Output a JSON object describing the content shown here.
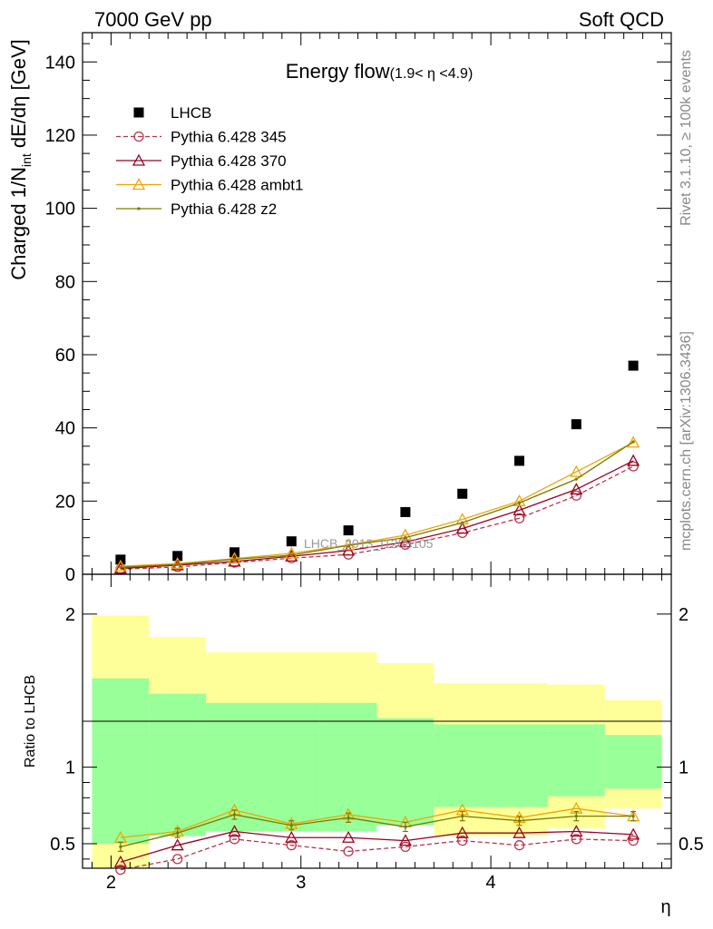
{
  "header": {
    "left": "7000 GeV pp",
    "right": "Soft QCD"
  },
  "side": {
    "rivet": "Rivet 3.1.10, ≥ 100k events",
    "mcplots": "mcplots.cern.ch [arXiv:1306.3436]"
  },
  "watermark": "LHCB_2013_I1208105",
  "chart_data": [
    {
      "type": "scatter",
      "title": "Energy flow",
      "title_sub": "(1.9< η <4.9)",
      "ylabel": "Charged 1/N",
      "ylabel_sub": "int",
      "ylabel_rest": " dE/dη [GeV]",
      "xlim": [
        1.85,
        4.95
      ],
      "ylim": [
        0,
        148
      ],
      "yticks": [
        0,
        20,
        40,
        60,
        80,
        100,
        120,
        140
      ],
      "ytick_labels": [
        "0",
        "20",
        "40",
        "60",
        "80",
        "100",
        "120",
        "140"
      ],
      "legend_position": "top-left",
      "x": [
        2.05,
        2.35,
        2.65,
        2.95,
        3.25,
        3.55,
        3.85,
        4.15,
        4.45,
        4.75
      ],
      "series": [
        {
          "name": "LHCB",
          "color": "#000000",
          "marker": "square",
          "values": [
            4.0,
            5.0,
            6.0,
            9.0,
            12.0,
            17.0,
            22.0,
            31.0,
            41.0,
            57.0
          ]
        },
        {
          "name": "Pythia 6.428 345",
          "color": "#b5364a",
          "marker": "circle",
          "dashed": true,
          "values": [
            1.4,
            2.0,
            3.2,
            4.4,
            5.4,
            8.1,
            11.3,
            15.3,
            21.5,
            29.5
          ]
        },
        {
          "name": "Pythia 6.428 370",
          "color": "#990022",
          "marker": "triangle",
          "values": [
            1.6,
            2.5,
            3.5,
            4.9,
            6.5,
            8.8,
            12.5,
            17.5,
            23.2,
            31.0
          ]
        },
        {
          "name": "Pythia 6.428 ambt1",
          "color": "#f0a500",
          "marker": "triangle",
          "values": [
            2.2,
            2.9,
            4.3,
            5.7,
            8.0,
            10.7,
            15.0,
            20.0,
            28.0,
            36.0
          ]
        },
        {
          "name": "Pythia 6.428 z2",
          "color": "#7a7a00",
          "marker": "dot",
          "values": [
            1.9,
            2.7,
            4.1,
            5.2,
            7.9,
            10.0,
            14.1,
            19.5,
            26.0,
            36.2
          ]
        }
      ]
    },
    {
      "type": "scatter",
      "ylabel": "Ratio to LHCB",
      "xlabel": "η",
      "xlim": [
        1.85,
        4.95
      ],
      "ylim": [
        0.34,
        2.26
      ],
      "xticks": [
        2,
        3,
        4
      ],
      "xtick_labels": [
        "2",
        "3",
        "4"
      ],
      "yticks": [
        0.5,
        1,
        2
      ],
      "ytick_labels": [
        "0.5",
        "1",
        "2"
      ],
      "band_edges": [
        1.9,
        2.2,
        2.5,
        3.1,
        3.4,
        3.7,
        4.3,
        4.6,
        4.9
      ],
      "band_outer": [
        [
          0.3,
          1.99
        ],
        [
          0.63,
          1.85
        ],
        [
          0.71,
          1.75
        ],
        [
          0.72,
          1.75
        ],
        [
          0.79,
          1.68
        ],
        [
          0.55,
          1.55
        ],
        [
          0.6,
          1.54
        ],
        [
          0.73,
          1.44
        ],
        [
          0.73,
          1.41
        ]
      ],
      "band_inner": [
        [
          0.5,
          1.58
        ],
        [
          0.55,
          1.48
        ],
        [
          0.58,
          1.42
        ],
        [
          0.58,
          1.42
        ],
        [
          0.62,
          1.32
        ],
        [
          0.74,
          1.28
        ],
        [
          0.81,
          1.28
        ],
        [
          0.86,
          1.21
        ],
        [
          0.88,
          1.18
        ]
      ],
      "x": [
        2.05,
        2.35,
        2.65,
        2.95,
        3.25,
        3.55,
        3.85,
        4.15,
        4.45,
        4.75
      ],
      "series": [
        {
          "name": "Pythia 6.428 345",
          "color": "#b5364a",
          "marker": "circle",
          "dashed": true,
          "values": [
            0.33,
            0.4,
            0.53,
            0.49,
            0.45,
            0.48,
            0.52,
            0.49,
            0.53,
            0.52
          ]
        },
        {
          "name": "Pythia 6.428 370",
          "color": "#990022",
          "marker": "triangle",
          "values": [
            0.38,
            0.49,
            0.58,
            0.54,
            0.54,
            0.52,
            0.57,
            0.57,
            0.58,
            0.56
          ]
        },
        {
          "name": "Pythia 6.428 ambt1",
          "color": "#f0a500",
          "marker": "triangle",
          "values": [
            0.54,
            0.58,
            0.72,
            0.63,
            0.69,
            0.64,
            0.72,
            0.67,
            0.73,
            0.68
          ]
        },
        {
          "name": "Pythia 6.428 z2",
          "color": "#7a7a00",
          "marker": "dot",
          "error": 0.03,
          "values": [
            0.48,
            0.57,
            0.69,
            0.62,
            0.67,
            0.61,
            0.68,
            0.65,
            0.68,
            0.68
          ]
        }
      ]
    }
  ]
}
